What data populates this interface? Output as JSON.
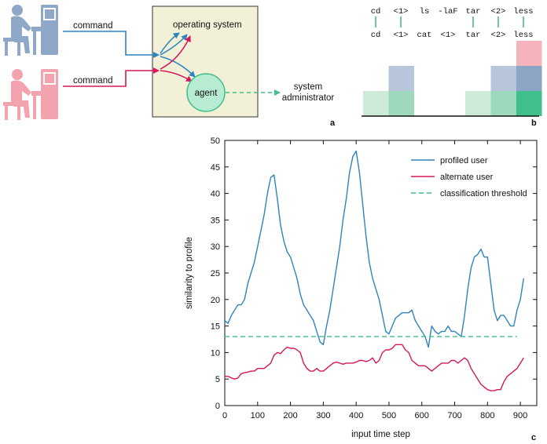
{
  "panel_a": {
    "label": "a",
    "command_top": "command",
    "command_bottom": "command",
    "operating_system": "operating system",
    "agent": "agent",
    "admin_line1": "system",
    "admin_line2": "administrator"
  },
  "panel_b": {
    "label": "b",
    "top_commands": [
      "cd",
      "<1>",
      "ls",
      "-laF",
      "tar",
      "<2>",
      "less"
    ],
    "bottom_commands": [
      "cd",
      "<1>",
      "cat",
      "<1>",
      "tar",
      "<2>",
      "less"
    ],
    "matches": [
      true,
      true,
      false,
      false,
      true,
      true,
      true
    ],
    "match_counts": [
      1,
      2,
      0,
      0,
      1,
      2,
      3
    ]
  },
  "chart_data": {
    "label": "c",
    "type": "line",
    "xlabel": "input time step",
    "ylabel": "similarity to profile",
    "xlim": [
      0,
      950
    ],
    "ylim": [
      0,
      50
    ],
    "xticks": [
      0,
      100,
      200,
      300,
      400,
      500,
      600,
      700,
      800,
      900
    ],
    "yticks": [
      0,
      5,
      10,
      15,
      20,
      25,
      30,
      35,
      40,
      45,
      50
    ],
    "legend_position": "top-right",
    "colors": {
      "profiled": "#2d84bf",
      "alternate": "#d6185a",
      "threshold": "#3fbf8a"
    },
    "series": [
      {
        "name": "profiled user",
        "x": [
          0,
          10,
          20,
          30,
          40,
          50,
          60,
          70,
          80,
          90,
          100,
          110,
          120,
          130,
          140,
          150,
          160,
          170,
          180,
          190,
          200,
          210,
          220,
          230,
          240,
          250,
          260,
          270,
          280,
          290,
          300,
          310,
          320,
          330,
          340,
          350,
          360,
          370,
          380,
          390,
          400,
          410,
          420,
          430,
          440,
          450,
          460,
          470,
          480,
          490,
          500,
          510,
          520,
          530,
          540,
          550,
          560,
          570,
          580,
          590,
          600,
          610,
          620,
          630,
          640,
          650,
          660,
          670,
          680,
          690,
          700,
          710,
          720,
          730,
          740,
          750,
          760,
          770,
          780,
          790,
          800,
          810,
          820,
          830,
          840,
          850,
          860,
          870,
          880,
          890,
          900,
          910
        ],
        "values": [
          16,
          15.5,
          17,
          18,
          19,
          19,
          20,
          23,
          25,
          27,
          30,
          33,
          36,
          40,
          43,
          43.5,
          39,
          34,
          31,
          29,
          28,
          26,
          24,
          21,
          19,
          18,
          17,
          16,
          14,
          12,
          11.5,
          15,
          18,
          22,
          26,
          30,
          35,
          39,
          44,
          47,
          48,
          44,
          38,
          32,
          27,
          24,
          22,
          20,
          17,
          14,
          13.5,
          15,
          16.5,
          17,
          17.5,
          17.5,
          17.5,
          18,
          16,
          15,
          14,
          13,
          11,
          15,
          14,
          13.5,
          14,
          14,
          15,
          14,
          14,
          13.5,
          13,
          17,
          22,
          26,
          28,
          28.5,
          29.5,
          28,
          28,
          23,
          18,
          16,
          17,
          17,
          16,
          15,
          15,
          18,
          20,
          24
        ]
      },
      {
        "name": "alternate user",
        "x": [
          0,
          10,
          20,
          30,
          40,
          50,
          60,
          70,
          80,
          90,
          100,
          110,
          120,
          130,
          140,
          150,
          160,
          170,
          180,
          190,
          200,
          210,
          220,
          230,
          240,
          250,
          260,
          270,
          280,
          290,
          300,
          310,
          320,
          330,
          340,
          350,
          360,
          370,
          380,
          390,
          400,
          410,
          420,
          430,
          440,
          450,
          460,
          470,
          480,
          490,
          500,
          510,
          520,
          530,
          540,
          550,
          560,
          570,
          580,
          590,
          600,
          610,
          620,
          630,
          640,
          650,
          660,
          670,
          680,
          690,
          700,
          710,
          720,
          730,
          740,
          750,
          760,
          770,
          780,
          790,
          800,
          810,
          820,
          830,
          840,
          850,
          860,
          870,
          880,
          890,
          900,
          910
        ],
        "values": [
          5.5,
          5.5,
          5.2,
          5,
          5.2,
          6,
          6.2,
          6.3,
          6.5,
          6.5,
          7,
          7,
          7,
          7.5,
          8,
          9.5,
          10,
          9.8,
          10.5,
          11,
          10.8,
          10.8,
          10.5,
          10,
          8,
          7,
          6.5,
          6.5,
          7,
          6.5,
          6.5,
          7,
          7.5,
          8,
          8.2,
          8,
          7.8,
          8,
          8,
          8,
          8.2,
          8.5,
          8.5,
          8.3,
          8.5,
          9,
          8,
          8.5,
          10,
          10.5,
          10.5,
          10.8,
          11.5,
          11.5,
          11.5,
          10.5,
          10,
          8.5,
          8,
          7.5,
          7.5,
          7.5,
          7,
          6.5,
          7,
          7.5,
          8,
          8,
          8,
          8.5,
          8.5,
          8,
          8.5,
          9,
          8.5,
          7,
          6,
          5,
          4,
          3.5,
          3,
          2.8,
          2.8,
          3,
          3,
          4.5,
          5.5,
          6,
          6.5,
          7,
          8,
          9
        ]
      },
      {
        "name": "classification threshold",
        "x": [
          0,
          890
        ],
        "values": [
          13,
          13
        ]
      }
    ]
  }
}
